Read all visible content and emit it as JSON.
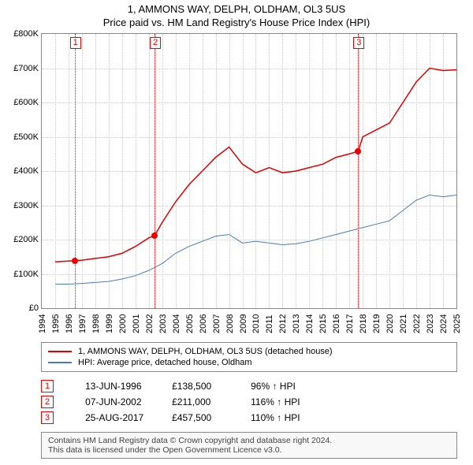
{
  "title_line1": "1, AMMONS WAY, DELPH, OLDHAM, OL3 5US",
  "title_line2": "Price paid vs. HM Land Registry's House Price Index (HPI)",
  "chart": {
    "type": "line",
    "x_years": [
      1994,
      1995,
      1996,
      1997,
      1998,
      1999,
      2000,
      2001,
      2002,
      2003,
      2004,
      2005,
      2006,
      2007,
      2008,
      2009,
      2010,
      2011,
      2012,
      2013,
      2014,
      2015,
      2016,
      2017,
      2018,
      2019,
      2020,
      2021,
      2022,
      2023,
      2024,
      2025
    ],
    "ylim": [
      0,
      800000
    ],
    "ytick_step": 100000,
    "ytick_labels": [
      "£0",
      "£100K",
      "£200K",
      "£300K",
      "£400K",
      "£500K",
      "£600K",
      "£700K",
      "£800K"
    ],
    "grid_color": "#cccccc",
    "border_color": "#888888",
    "background_color": "#ffffff",
    "tick_fontsize": 11,
    "series": [
      {
        "name": "property",
        "label": "1, AMMONS WAY, DELPH, OLDHAM, OL3 5US (detached house)",
        "color": "#e00000",
        "stroke_width": 1.5,
        "points": [
          [
            1995.0,
            135000
          ],
          [
            1996.45,
            138500
          ],
          [
            1997.0,
            140000
          ],
          [
            1998.0,
            145000
          ],
          [
            1999.0,
            150000
          ],
          [
            2000.0,
            160000
          ],
          [
            2001.0,
            180000
          ],
          [
            2002.0,
            205000
          ],
          [
            2002.43,
            211000
          ],
          [
            2003.0,
            250000
          ],
          [
            2004.0,
            310000
          ],
          [
            2005.0,
            360000
          ],
          [
            2006.0,
            400000
          ],
          [
            2007.0,
            440000
          ],
          [
            2008.0,
            470000
          ],
          [
            2009.0,
            420000
          ],
          [
            2010.0,
            395000
          ],
          [
            2011.0,
            410000
          ],
          [
            2012.0,
            395000
          ],
          [
            2013.0,
            400000
          ],
          [
            2014.0,
            410000
          ],
          [
            2015.0,
            420000
          ],
          [
            2016.0,
            440000
          ],
          [
            2017.0,
            450000
          ],
          [
            2017.65,
            457500
          ],
          [
            2018.0,
            500000
          ],
          [
            2019.0,
            520000
          ],
          [
            2020.0,
            540000
          ],
          [
            2021.0,
            600000
          ],
          [
            2022.0,
            660000
          ],
          [
            2023.0,
            700000
          ],
          [
            2024.0,
            693000
          ],
          [
            2025.0,
            695000
          ]
        ]
      },
      {
        "name": "hpi",
        "label": "HPI: Average price, detached house, Oldham",
        "color": "#4a7cb8",
        "stroke_width": 1,
        "points": [
          [
            1995.0,
            70000
          ],
          [
            1996.0,
            70000
          ],
          [
            1997.0,
            72000
          ],
          [
            1998.0,
            75000
          ],
          [
            1999.0,
            78000
          ],
          [
            2000.0,
            85000
          ],
          [
            2001.0,
            95000
          ],
          [
            2002.0,
            110000
          ],
          [
            2003.0,
            130000
          ],
          [
            2004.0,
            160000
          ],
          [
            2005.0,
            180000
          ],
          [
            2006.0,
            195000
          ],
          [
            2007.0,
            210000
          ],
          [
            2008.0,
            215000
          ],
          [
            2009.0,
            190000
          ],
          [
            2010.0,
            195000
          ],
          [
            2011.0,
            190000
          ],
          [
            2012.0,
            185000
          ],
          [
            2013.0,
            188000
          ],
          [
            2014.0,
            195000
          ],
          [
            2015.0,
            205000
          ],
          [
            2016.0,
            215000
          ],
          [
            2017.0,
            225000
          ],
          [
            2018.0,
            235000
          ],
          [
            2019.0,
            245000
          ],
          [
            2020.0,
            255000
          ],
          [
            2021.0,
            285000
          ],
          [
            2022.0,
            315000
          ],
          [
            2023.0,
            330000
          ],
          [
            2024.0,
            325000
          ],
          [
            2025.0,
            330000
          ]
        ]
      }
    ],
    "sale_markers": [
      {
        "index": "1",
        "year": 1996.45,
        "value": 138500
      },
      {
        "index": "2",
        "year": 2002.43,
        "value": 211000
      },
      {
        "index": "3",
        "year": 2017.65,
        "value": 457500
      }
    ]
  },
  "legend": {
    "series1_label": "1, AMMONS WAY, DELPH, OLDHAM, OL3 5US (detached house)",
    "series1_color": "#e00000",
    "series2_label": "HPI: Average price, detached house, Oldham",
    "series2_color": "#4a7cb8"
  },
  "sales": [
    {
      "index": "1",
      "date": "13-JUN-1996",
      "price": "£138,500",
      "pct": "96% ↑ HPI"
    },
    {
      "index": "2",
      "date": "07-JUN-2002",
      "price": "£211,000",
      "pct": "116% ↑ HPI"
    },
    {
      "index": "3",
      "date": "25-AUG-2017",
      "price": "£457,500",
      "pct": "110% ↑ HPI"
    }
  ],
  "footer": {
    "line1": "Contains HM Land Registry data © Crown copyright and database right 2024.",
    "line2": "This data is licensed under the Open Government Licence v3.0."
  }
}
